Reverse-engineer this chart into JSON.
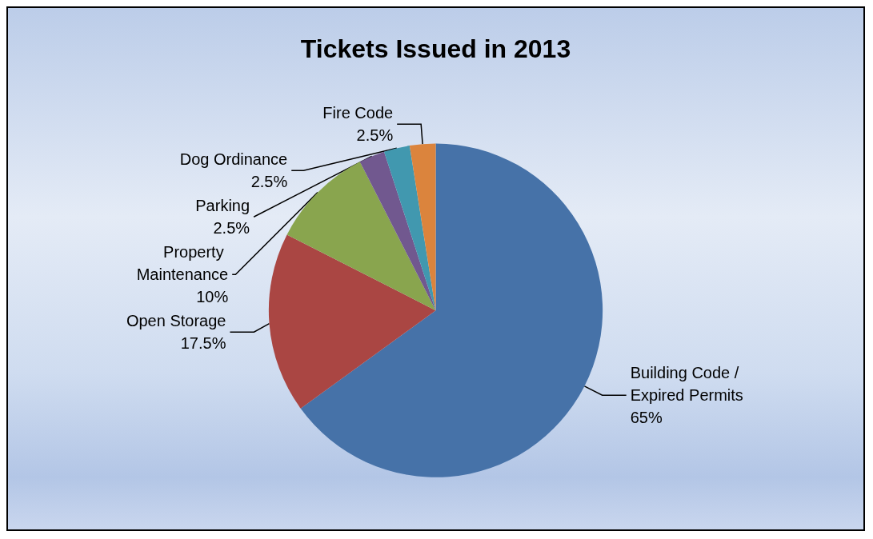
{
  "chart_data": {
    "type": "pie",
    "title": "Tickets Issued in 2013",
    "categories": [
      "Building Code / Expired Permits",
      "Open Storage",
      "Property Maintenance",
      "Parking",
      "Dog Ordinance",
      "Fire Code"
    ],
    "values": [
      65,
      17.5,
      10,
      2.5,
      2.5,
      2.5
    ],
    "value_labels": [
      "65%",
      "17.5%",
      "10%",
      "2.5%",
      "2.5%",
      "2.5%"
    ],
    "colors": [
      "#4672a8",
      "#aa4643",
      "#89a54e",
      "#71588f",
      "#4198af",
      "#db843d"
    ],
    "legend": false
  }
}
